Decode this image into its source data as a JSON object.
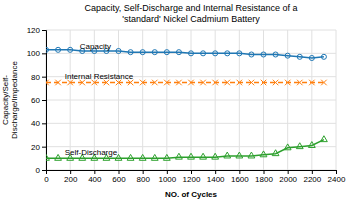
{
  "chart_data": {
    "type": "line",
    "title": "Capacity, Self-Discharge and Internal Resistance of a\n'standard' Nickel Cadmium Battery",
    "x_label": "NO. of Cycles",
    "y_label": "Capacity/Self-\nDischarge/Impedance",
    "x": [
      0,
      100,
      200,
      300,
      400,
      500,
      600,
      700,
      800,
      900,
      1000,
      1100,
      1200,
      1300,
      1400,
      1500,
      1600,
      1700,
      1800,
      1900,
      2000,
      2100,
      2200,
      2300
    ],
    "series": [
      {
        "values": [
          103,
          103,
          103,
          102,
          102,
          102,
          102,
          101,
          101,
          101,
          101,
          101,
          100,
          100,
          100,
          100,
          100,
          99,
          99,
          99,
          98,
          97,
          96,
          97
        ],
        "marker": "circle",
        "line_style": "solid"
      },
      {
        "values": [
          75,
          75,
          75,
          75,
          75,
          75,
          75,
          75,
          75,
          75,
          75,
          75,
          75,
          75,
          75,
          75,
          75,
          75,
          75,
          75,
          75,
          75,
          75,
          75
        ],
        "marker": "x",
        "line_style": "dashed"
      },
      {
        "values": [
          10,
          10,
          10,
          10,
          10,
          10,
          10,
          10,
          10,
          10,
          10,
          11,
          11,
          11,
          11,
          12,
          12,
          12,
          13,
          14,
          19,
          20,
          21,
          26
        ],
        "marker": "triangle",
        "line_style": "solid"
      }
    ],
    "annotations": [
      {
        "text": "Capacity",
        "x": 280,
        "y": 104
      },
      {
        "text": "Internal Resistance",
        "x": 155,
        "y": 78
      },
      {
        "text": "Self-Discharge",
        "x": 155,
        "y": 13
      }
    ],
    "xlim": [
      0,
      2400
    ],
    "ylim": [
      0,
      120
    ],
    "xticks": [
      0,
      200,
      400,
      600,
      800,
      1000,
      1200,
      1400,
      1600,
      1800,
      2000,
      2200,
      2400
    ],
    "yticks": [
      0,
      20,
      40,
      60,
      80,
      100,
      120
    ],
    "grid": true
  }
}
